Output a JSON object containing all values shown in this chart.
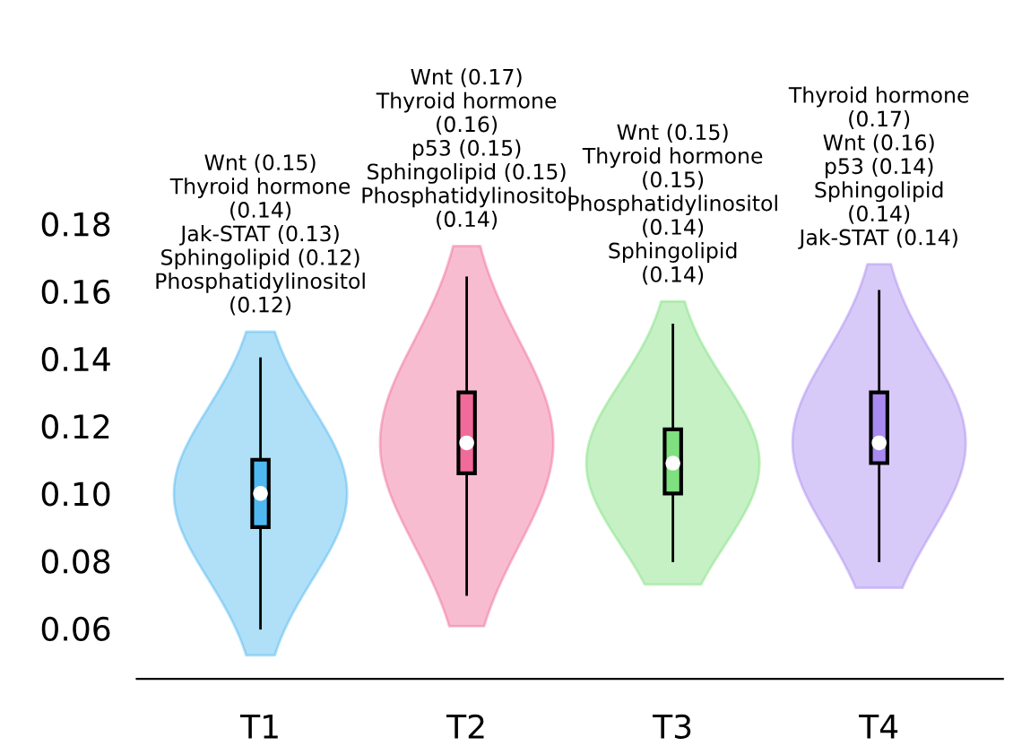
{
  "chart_data": {
    "type": "box",
    "categories": [
      "T1",
      "T2",
      "T3",
      "T4"
    ],
    "colors": [
      "#4fb8f0",
      "#f06a9a",
      "#7ee07e",
      "#a98af0"
    ],
    "boxes": [
      {
        "low": 0.06,
        "q1": 0.09,
        "median": 0.1,
        "q3": 0.11,
        "high": 0.14
      },
      {
        "low": 0.07,
        "q1": 0.106,
        "median": 0.115,
        "q3": 0.13,
        "high": 0.164
      },
      {
        "low": 0.08,
        "q1": 0.1,
        "median": 0.109,
        "q3": 0.119,
        "high": 0.15
      },
      {
        "low": 0.08,
        "q1": 0.109,
        "median": 0.115,
        "q3": 0.13,
        "high": 0.16
      }
    ],
    "ylim": [
      0.045,
      0.18
    ],
    "yticks": [
      {
        "value": 0.06,
        "label": "0.06"
      },
      {
        "value": 0.08,
        "label": "0.08"
      },
      {
        "value": 0.1,
        "label": "0.10"
      },
      {
        "value": 0.12,
        "label": "0.12"
      },
      {
        "value": 0.14,
        "label": "0.14"
      },
      {
        "value": 0.16,
        "label": "0.16"
      },
      {
        "value": 0.18,
        "label": "0.18"
      }
    ],
    "grid": false,
    "annotations": [
      "Wnt (0.15)\nThyroid hormone\n(0.14)\nJak-STAT (0.13)\nSphingolipid (0.12)\nPhosphatidylinositol\n(0.12)",
      "Wnt (0.17)\nThyroid hormone\n(0.16)\np53 (0.15)\nSphingolipid (0.15)\nPhosphatidylinositol\n(0.14)",
      "Wnt (0.15)\nThyroid hormone\n(0.15)\nPhosphatidylinositol\n(0.14)\nSphingolipid\n(0.14)",
      "Thyroid hormone\n(0.17)\nWnt (0.16)\np53 (0.14)\nSphingolipid\n(0.14)\nJak-STAT (0.14)"
    ]
  }
}
